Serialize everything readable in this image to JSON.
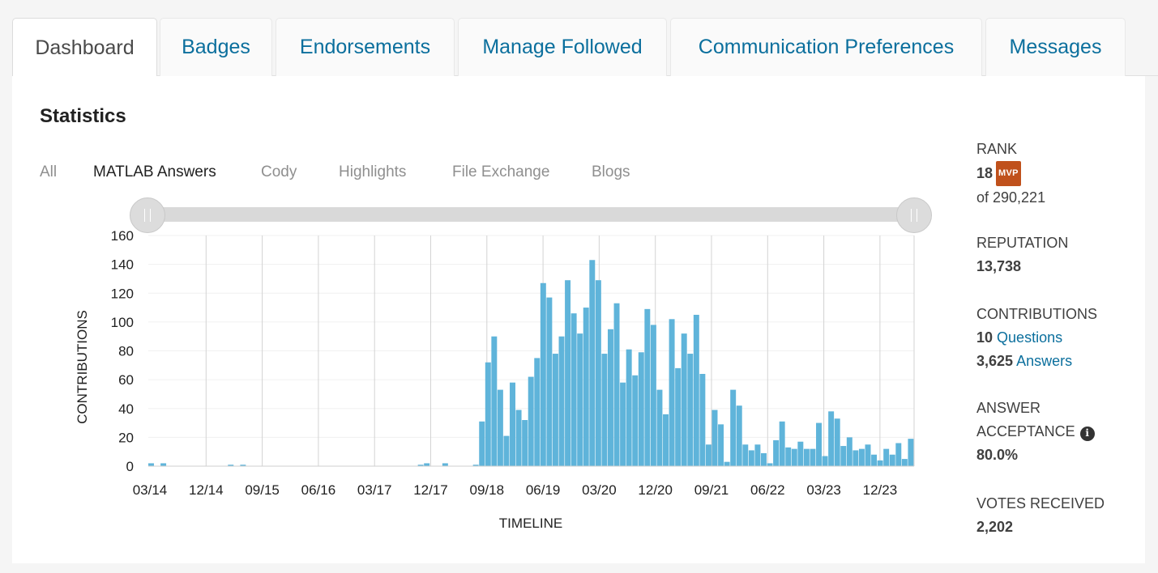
{
  "tabs": [
    {
      "label": "Dashboard",
      "active": true
    },
    {
      "label": "Badges",
      "active": false
    },
    {
      "label": "Endorsements",
      "active": false
    },
    {
      "label": "Manage Followed",
      "active": false
    },
    {
      "label": "Communication Preferences",
      "active": false
    },
    {
      "label": "Messages",
      "active": false
    }
  ],
  "statistics": {
    "title": "Statistics",
    "filters": [
      "All",
      "MATLAB Answers",
      "Cody",
      "Highlights",
      "File Exchange",
      "Blogs"
    ],
    "active_filter": "MATLAB Answers"
  },
  "chart_data": {
    "type": "bar",
    "title": "",
    "xlabel": "TIMELINE",
    "ylabel": "CONTRIBUTIONS",
    "ylim": [
      0,
      160
    ],
    "yticks": [
      0,
      20,
      40,
      60,
      80,
      100,
      120,
      140,
      160
    ],
    "xtick_labels": [
      "03/14",
      "12/14",
      "09/15",
      "06/16",
      "03/17",
      "12/17",
      "09/18",
      "06/19",
      "03/20",
      "12/20",
      "09/21",
      "06/22",
      "03/23",
      "12/23"
    ],
    "grid": "vertical",
    "bar_color": "#5fb4da",
    "series": [
      {
        "values": [
          2,
          0,
          2,
          0,
          0,
          0,
          0,
          0,
          0,
          0,
          0,
          0,
          0,
          1,
          0,
          1,
          0,
          0,
          0,
          0,
          0,
          0,
          0,
          0,
          0,
          0,
          0,
          0,
          0,
          0,
          0,
          0,
          0,
          0,
          0,
          0,
          0,
          0,
          0,
          0,
          0,
          0,
          0,
          0,
          1,
          2,
          0,
          0,
          2,
          0,
          0,
          0,
          0,
          1,
          31,
          72,
          90,
          53,
          21,
          58,
          39,
          32,
          62,
          75,
          127,
          117,
          78,
          90,
          129,
          106,
          92,
          110,
          143,
          129,
          78,
          95,
          113,
          58,
          81,
          63,
          79,
          109,
          98,
          53,
          36,
          102,
          68,
          92,
          78,
          105,
          64,
          15,
          39,
          29,
          3,
          53,
          42,
          15,
          11,
          15,
          9,
          2,
          18,
          31,
          13,
          12,
          17,
          12,
          12,
          30,
          7,
          38,
          33,
          14,
          20,
          11,
          12,
          15,
          8,
          4,
          12,
          8,
          16,
          5,
          19
        ]
      }
    ]
  },
  "side": {
    "rank_label": "RANK",
    "rank_value": "18",
    "mvp_badge": "MVP",
    "rank_of": "of 290,221",
    "reputation_label": "REPUTATION",
    "reputation_value": "13,738",
    "contributions_label": "CONTRIBUTIONS",
    "questions_count": "10",
    "questions_link": "Questions",
    "answers_count": "3,625",
    "answers_link": "Answers",
    "acceptance_label_1": "ANSWER",
    "acceptance_label_2": "ACCEPTANCE",
    "info_glyph": "i",
    "acceptance_value": "80.0%",
    "votes_label": "VOTES RECEIVED",
    "votes_value": "2,202"
  }
}
